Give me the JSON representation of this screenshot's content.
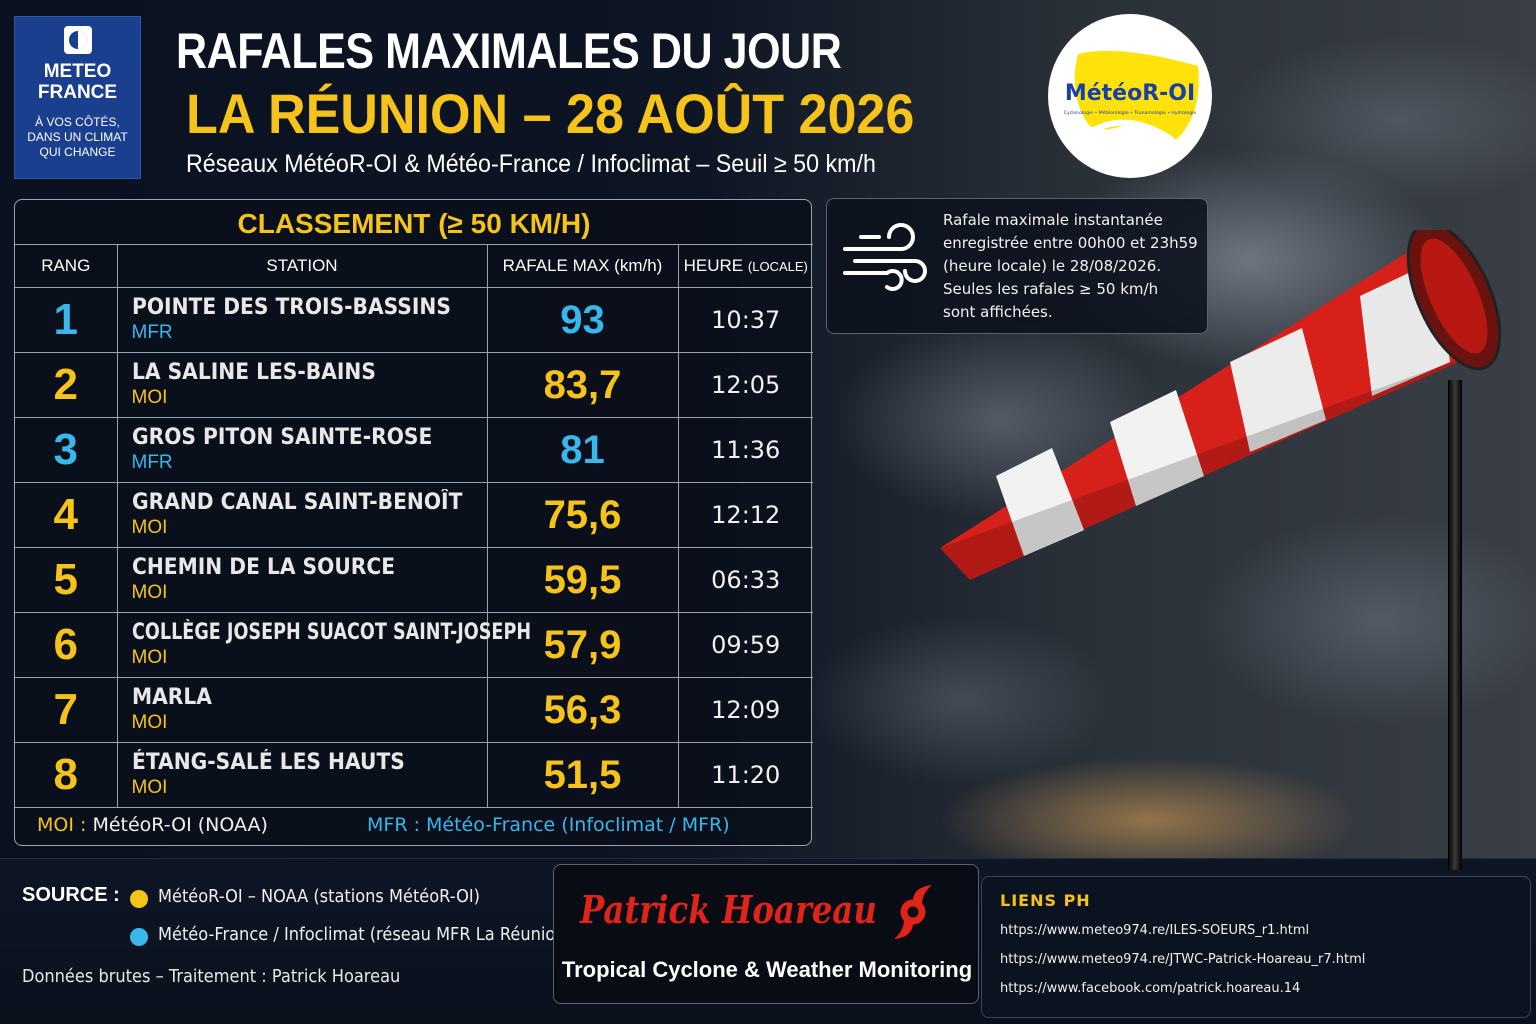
{
  "header": {
    "meteofrance_logo": {
      "name_line1": "METEO",
      "name_line2": "FRANCE",
      "tagline_line1": "À VOS CÔTÉS,",
      "tagline_line2": "DANS UN CLIMAT",
      "tagline_line3": "QUI CHANGE"
    },
    "title": "RAFALES MAXIMALES DU JOUR",
    "location_date": "LA RÉUNION – 28 AOÛT 2026",
    "subtitle": "Réseaux MétéoR-OI & Météo-France / Infoclimat – Seuil ≥ 50 km/h",
    "meteor_oi_logo": {
      "name": "MétéoR-OI",
      "tagline": "Cyclonologie • Météorologie • Tsunamologie • Hydrologie"
    }
  },
  "info_box": {
    "icon": "wind-icon",
    "lines": [
      "Rafale maximale instantanée",
      "enregistrée entre 00h00 et 23h59",
      "(heure locale) le 28/08/2026.",
      "Seules les rafales ≥ 50 km/h",
      "sont affichées."
    ]
  },
  "ranking": {
    "title": "CLASSEMENT (≥ 50 KM/H)",
    "headers": {
      "rank": "RANG",
      "station": "STATION",
      "gust": "RAFALE MAX (km/h)",
      "time": "HEURE",
      "time_note": "(LOCALE)"
    },
    "rows": [
      {
        "rank": "1",
        "station": "POINTE DES TROIS-BASSINS",
        "network": "MFR",
        "gust": "93",
        "time": "10:37"
      },
      {
        "rank": "2",
        "station": "LA SALINE LES-BAINS",
        "network": "MOI",
        "gust": "83,7",
        "time": "12:05"
      },
      {
        "rank": "3",
        "station": "GROS PITON SAINTE-ROSE",
        "network": "MFR",
        "gust": "81",
        "time": "11:36"
      },
      {
        "rank": "4",
        "station": "GRAND CANAL SAINT-BENOÎT",
        "network": "MOI",
        "gust": "75,6",
        "time": "12:12"
      },
      {
        "rank": "5",
        "station": "CHEMIN DE LA SOURCE",
        "network": "MOI",
        "gust": "59,5",
        "time": "06:33"
      },
      {
        "rank": "6",
        "station": "COLLÈGE JOSEPH SUACOT SAINT-JOSEPH",
        "network": "MOI",
        "gust": "57,9",
        "time": "09:59"
      },
      {
        "rank": "7",
        "station": "MARLA",
        "network": "MOI",
        "gust": "56,3",
        "time": "12:09"
      },
      {
        "rank": "8",
        "station": "ÉTANG-SALÉ LES HAUTS",
        "network": "MOI",
        "gust": "51,5",
        "time": "11:20"
      }
    ],
    "legend": {
      "moi_code": "MOI :",
      "moi_text": "MétéoR-OI (NOAA)",
      "mfr_text": "MFR : Météo-France (Infoclimat / MFR)"
    }
  },
  "colors": {
    "moi": "#f6c31a",
    "mfr": "#37b7ea",
    "accent_red": "#e2231a"
  },
  "footer": {
    "source_label": "SOURCE :",
    "sources": [
      {
        "text": "MétéoR-OI – NOAA (stations MétéoR-OI)",
        "color": "#f6c31a"
      },
      {
        "text": "Météo-France / Infoclimat (réseau MFR La Réunion)",
        "color": "#37b7ea"
      }
    ],
    "credits": "Données brutes – Traitement : Patrick Hoareau",
    "brand": {
      "name": "Patrick Hoareau",
      "icon": "cyclone-icon",
      "tagline": "Tropical Cyclone & Weather Monitoring"
    },
    "links": {
      "title": "LIENS PH",
      "items": [
        "https://www.meteo974.re/ILES-SOEURS_r1.html",
        "https://www.meteo974.re/JTWC-Patrick-Hoareau_r7.html",
        "https://www.facebook.com/patrick.hoareau.14"
      ]
    }
  }
}
